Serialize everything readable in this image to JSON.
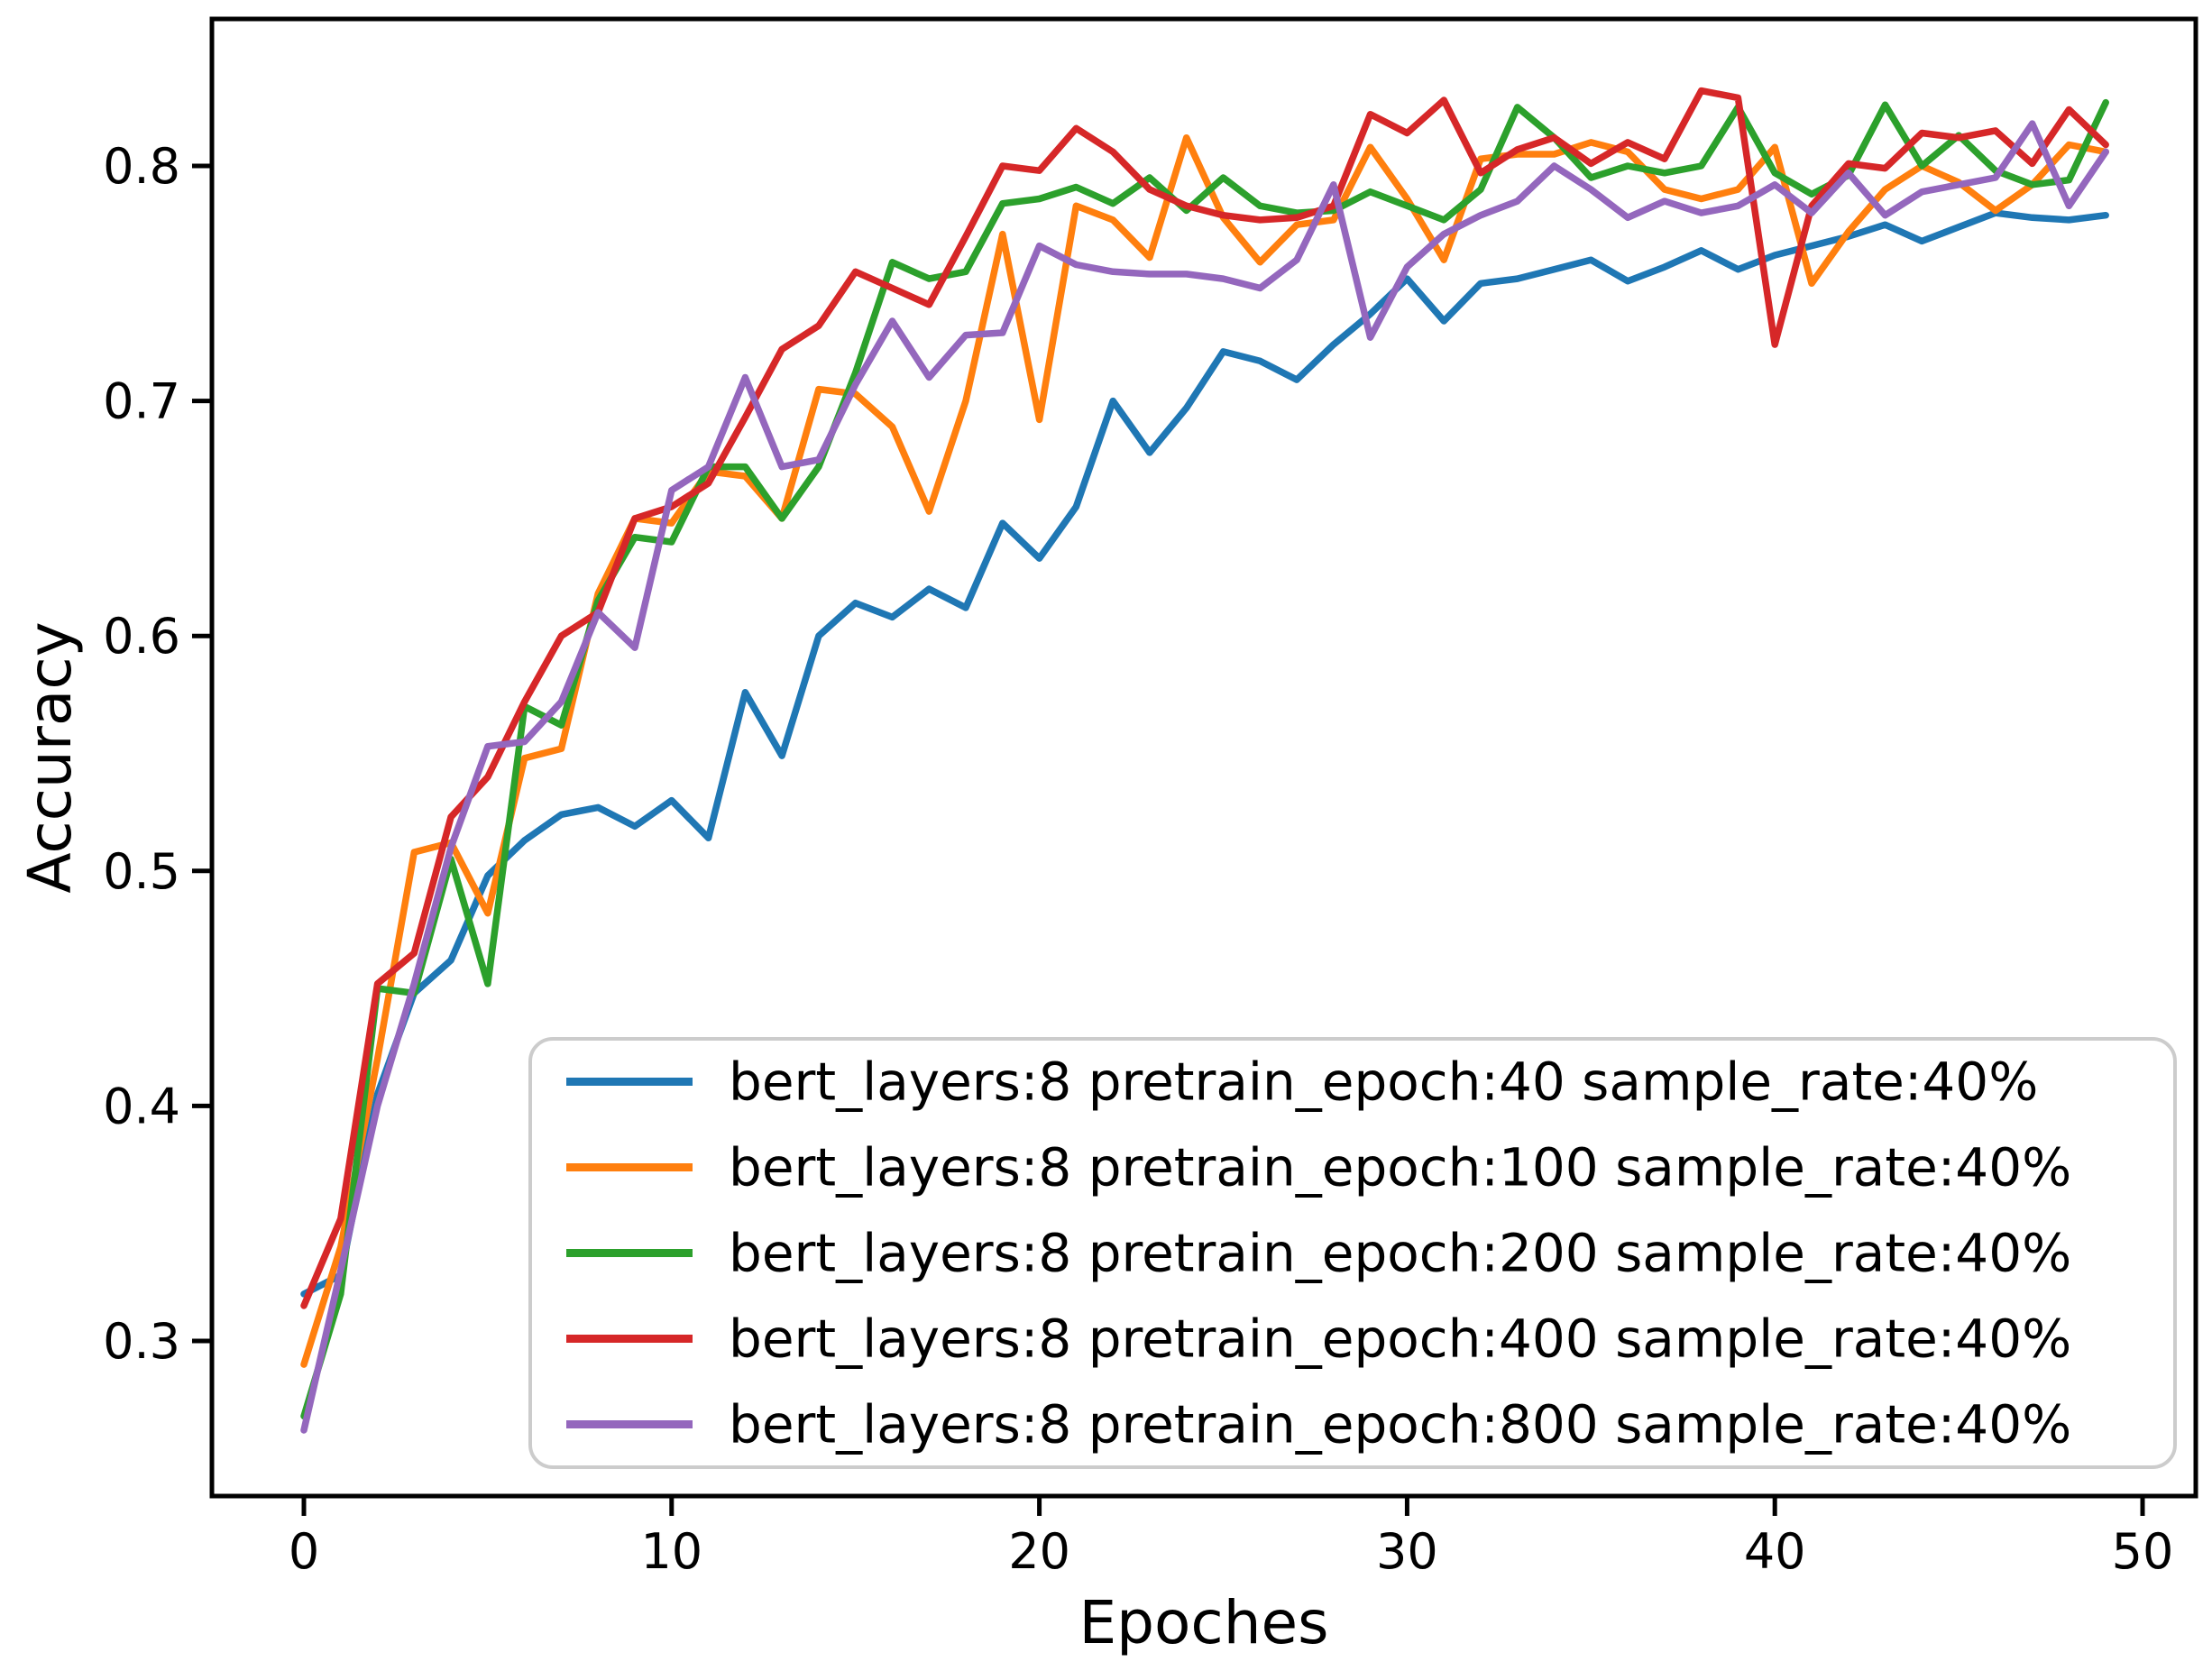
{
  "figure": {
    "background": "#ffffff",
    "spine_color": "#000000",
    "legend_border_color": "#cccccc"
  },
  "chart_data": {
    "type": "line",
    "title": "",
    "xlabel": "Epoches",
    "ylabel": "Accuracy",
    "x_range": [
      0,
      49
    ],
    "xlim": [
      -2.5,
      51.5
    ],
    "ylim": [
      0.234,
      0.8625
    ],
    "grid": false,
    "legend_position": "lower center-right inside plot",
    "x_axis": {
      "tick_values": [
        0,
        10,
        20,
        30,
        40,
        50
      ],
      "tick_labels": [
        "0",
        "10",
        "20",
        "30",
        "40",
        "50"
      ]
    },
    "y_axis": {
      "tick_values": [
        0.3,
        0.4,
        0.5,
        0.6,
        0.7,
        0.8
      ],
      "tick_labels": [
        "0.3",
        "0.4",
        "0.5",
        "0.6",
        "0.7",
        "0.8"
      ]
    },
    "series": [
      {
        "name": "bert_layers:8 pretrain_epoch:40 sample_rate:40%",
        "color": "#1f77b4",
        "values": [
          0.32,
          0.328,
          0.405,
          0.448,
          0.462,
          0.498,
          0.513,
          0.524,
          0.527,
          0.519,
          0.53,
          0.514,
          0.576,
          0.549,
          0.6,
          0.614,
          0.608,
          0.62,
          0.612,
          0.648,
          0.633,
          0.655,
          0.7,
          0.678,
          0.697,
          0.721,
          0.717,
          0.709,
          0.724,
          0.737,
          0.752,
          0.734,
          0.75,
          0.752,
          0.756,
          0.76,
          0.751,
          0.757,
          0.764,
          0.756,
          0.762,
          0.766,
          0.77,
          0.775,
          0.768,
          0.774,
          0.78,
          0.778,
          0.777,
          0.779
        ]
      },
      {
        "name": "bert_layers:8 pretrain_epoch:100 sample_rate:40%",
        "color": "#ff7f0e",
        "values": [
          0.29,
          0.34,
          0.42,
          0.508,
          0.512,
          0.482,
          0.548,
          0.552,
          0.618,
          0.65,
          0.648,
          0.67,
          0.668,
          0.65,
          0.705,
          0.703,
          0.689,
          0.653,
          0.7,
          0.771,
          0.692,
          0.783,
          0.777,
          0.761,
          0.812,
          0.778,
          0.759,
          0.775,
          0.777,
          0.808,
          0.786,
          0.76,
          0.803,
          0.805,
          0.805,
          0.81,
          0.806,
          0.79,
          0.786,
          0.79,
          0.808,
          0.75,
          0.772,
          0.79,
          0.8,
          0.793,
          0.781,
          0.792,
          0.809,
          0.806
        ]
      },
      {
        "name": "bert_layers:8 pretrain_epoch:200 sample_rate:40%",
        "color": "#2ca02c",
        "values": [
          0.268,
          0.32,
          0.45,
          0.448,
          0.505,
          0.452,
          0.57,
          0.562,
          0.615,
          0.642,
          0.64,
          0.672,
          0.672,
          0.65,
          0.672,
          0.712,
          0.759,
          0.752,
          0.755,
          0.784,
          0.786,
          0.791,
          0.784,
          0.795,
          0.781,
          0.795,
          0.783,
          0.78,
          0.781,
          0.789,
          0.783,
          0.777,
          0.79,
          0.825,
          0.812,
          0.795,
          0.8,
          0.797,
          0.8,
          0.825,
          0.797,
          0.788,
          0.796,
          0.826,
          0.8,
          0.813,
          0.798,
          0.792,
          0.794,
          0.827
        ]
      },
      {
        "name": "bert_layers:8 pretrain_epoch:400 sample_rate:40%",
        "color": "#d62728",
        "values": [
          0.315,
          0.352,
          0.452,
          0.465,
          0.523,
          0.54,
          0.572,
          0.6,
          0.61,
          0.65,
          0.655,
          0.665,
          0.693,
          0.722,
          0.732,
          0.755,
          0.748,
          0.741,
          0.77,
          0.8,
          0.798,
          0.816,
          0.806,
          0.79,
          0.783,
          0.779,
          0.777,
          0.778,
          0.783,
          0.822,
          0.814,
          0.828,
          0.797,
          0.807,
          0.812,
          0.801,
          0.81,
          0.803,
          0.832,
          0.829,
          0.724,
          0.783,
          0.801,
          0.799,
          0.814,
          0.812,
          0.815,
          0.801,
          0.824,
          0.809
        ]
      },
      {
        "name": "bert_layers:8 pretrain_epoch:800 sample_rate:40%",
        "color": "#9467bd",
        "values": [
          0.262,
          0.33,
          0.4,
          0.452,
          0.51,
          0.553,
          0.555,
          0.572,
          0.61,
          0.595,
          0.662,
          0.672,
          0.71,
          0.672,
          0.675,
          0.707,
          0.734,
          0.71,
          0.728,
          0.729,
          0.766,
          0.758,
          0.755,
          0.754,
          0.754,
          0.752,
          0.748,
          0.76,
          0.792,
          0.727,
          0.757,
          0.771,
          0.779,
          0.785,
          0.8,
          0.79,
          0.778,
          0.785,
          0.78,
          0.783,
          0.792,
          0.78,
          0.797,
          0.779,
          0.789,
          0.792,
          0.795,
          0.818,
          0.783,
          0.806
        ]
      }
    ]
  }
}
